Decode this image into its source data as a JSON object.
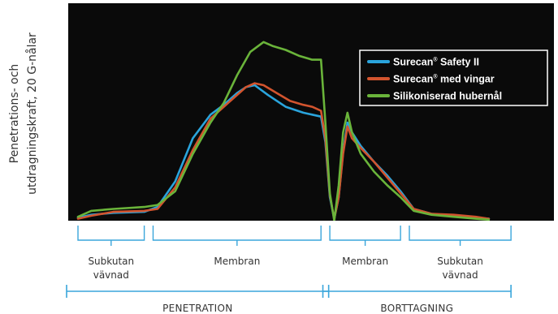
{
  "chart_data": {
    "type": "line",
    "title": "",
    "ylabel": [
      "Penetrations- och",
      "utdragningskraft, 20 G-nålar"
    ],
    "xlabel": "",
    "grid": false,
    "background": "#0a0a0a",
    "legend_position": "top-right",
    "legend": [
      {
        "main": "Surecan",
        "sup": "®",
        "rest": " Safety II",
        "color": "#2aa4dc"
      },
      {
        "main": "Surecan",
        "sup": "®",
        "rest": " med vingar",
        "color": "#d2542e"
      },
      {
        "main": "Silikoniserad hubernål",
        "sup": "",
        "rest": "",
        "color": "#6ab43a"
      }
    ],
    "xlim": [
      0,
      100
    ],
    "ylim": [
      0,
      100
    ],
    "series": [
      {
        "legend_index": 0,
        "color": "#2aa4dc",
        "points": [
          [
            0,
            1.5
          ],
          [
            3,
            3
          ],
          [
            8,
            4
          ],
          [
            15,
            4.5
          ],
          [
            18,
            7
          ],
          [
            22,
            20
          ],
          [
            26,
            42
          ],
          [
            30,
            54
          ],
          [
            33,
            59
          ],
          [
            36,
            65
          ],
          [
            38,
            68
          ],
          [
            40,
            69
          ],
          [
            43,
            64
          ],
          [
            47,
            58
          ],
          [
            51,
            55
          ],
          [
            53,
            54
          ],
          [
            55,
            53
          ],
          [
            56,
            40
          ],
          [
            57,
            12
          ],
          [
            58,
            1
          ],
          [
            59,
            12
          ],
          [
            60,
            35
          ],
          [
            61,
            50
          ],
          [
            62,
            45
          ],
          [
            64,
            38
          ],
          [
            67,
            30
          ],
          [
            70,
            23
          ],
          [
            73,
            15
          ],
          [
            76,
            6
          ],
          [
            80,
            3.5
          ],
          [
            85,
            2.5
          ],
          [
            90,
            1.5
          ],
          [
            93,
            1
          ]
        ]
      },
      {
        "legend_index": 1,
        "color": "#d2542e",
        "points": [
          [
            0,
            1
          ],
          [
            3,
            2.5
          ],
          [
            8,
            4.5
          ],
          [
            15,
            5
          ],
          [
            18,
            6
          ],
          [
            22,
            17
          ],
          [
            26,
            36
          ],
          [
            30,
            52
          ],
          [
            33,
            58
          ],
          [
            36,
            64
          ],
          [
            38,
            68
          ],
          [
            40,
            70
          ],
          [
            42,
            69
          ],
          [
            45,
            65
          ],
          [
            48,
            61
          ],
          [
            51,
            59
          ],
          [
            53,
            58
          ],
          [
            55,
            56
          ],
          [
            56,
            42
          ],
          [
            57,
            13
          ],
          [
            58,
            1
          ],
          [
            59,
            12
          ],
          [
            60,
            34
          ],
          [
            61,
            48
          ],
          [
            62,
            42
          ],
          [
            64,
            37
          ],
          [
            67,
            30
          ],
          [
            70,
            22
          ],
          [
            73,
            14
          ],
          [
            76,
            6
          ],
          [
            80,
            3.5
          ],
          [
            85,
            3
          ],
          [
            90,
            2
          ],
          [
            93,
            1
          ]
        ]
      },
      {
        "legend_index": 2,
        "color": "#6ab43a",
        "points": [
          [
            0,
            2
          ],
          [
            3,
            5
          ],
          [
            8,
            6
          ],
          [
            15,
            7
          ],
          [
            18,
            8
          ],
          [
            22,
            15
          ],
          [
            26,
            34
          ],
          [
            30,
            50
          ],
          [
            33,
            60
          ],
          [
            36,
            74
          ],
          [
            39,
            86
          ],
          [
            42,
            91
          ],
          [
            44,
            89
          ],
          [
            47,
            87
          ],
          [
            50,
            84
          ],
          [
            53,
            82
          ],
          [
            55,
            82
          ],
          [
            56,
            50
          ],
          [
            57,
            14
          ],
          [
            58,
            0
          ],
          [
            59,
            18
          ],
          [
            60,
            45
          ],
          [
            61,
            55
          ],
          [
            62,
            45
          ],
          [
            64,
            34
          ],
          [
            67,
            25
          ],
          [
            70,
            18
          ],
          [
            73,
            12
          ],
          [
            76,
            5
          ],
          [
            80,
            3
          ],
          [
            85,
            2
          ],
          [
            90,
            1
          ],
          [
            93,
            0.5
          ]
        ]
      }
    ],
    "regions": [
      {
        "label": [
          "Subkutan",
          "vävnad"
        ],
        "from": 0,
        "to": 15
      },
      {
        "label": [
          "Membran"
        ],
        "from": 17,
        "to": 55
      },
      {
        "label": [
          "Membran"
        ],
        "from": 57,
        "to": 73
      },
      {
        "label": [
          "Subkutan",
          "vävnad"
        ],
        "from": 75,
        "to": 98
      }
    ],
    "phases": [
      {
        "label": "PENETRATION",
        "from": 0,
        "to": 56
      },
      {
        "label": "BORTTAGNING",
        "from": 58,
        "to": 98
      }
    ]
  }
}
